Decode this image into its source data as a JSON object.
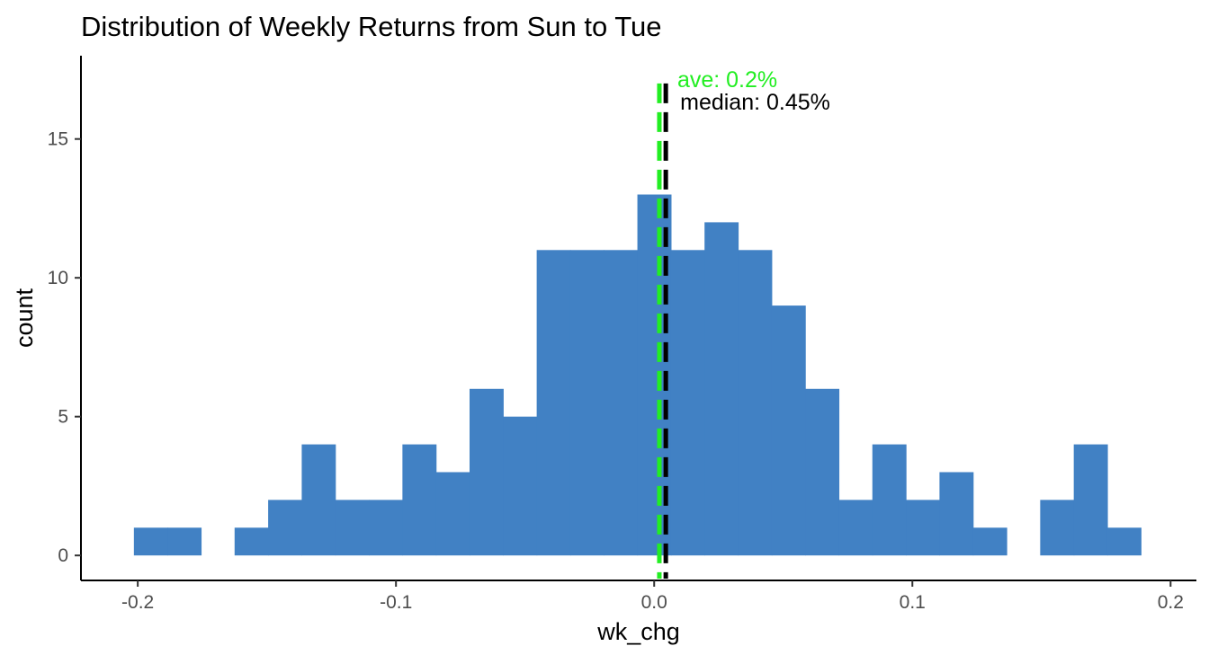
{
  "chart_data": {
    "type": "histogram",
    "title": "Distribution of Weekly Returns from Sun to Tue",
    "xlabel": "wk_chg",
    "ylabel": "count",
    "xlim": [
      -0.222,
      0.21
    ],
    "ylim": [
      -0.9,
      18
    ],
    "x_ticks": [
      -0.2,
      -0.1,
      0.0,
      0.1,
      0.2
    ],
    "x_tick_labels": [
      "-0.2",
      "-0.1",
      "0.0",
      "0.1",
      "0.2"
    ],
    "y_ticks": [
      0,
      5,
      10,
      15
    ],
    "y_tick_labels": [
      "0",
      "5",
      "10",
      "15"
    ],
    "grid": false,
    "bar_color": "#4181C4",
    "bin_width": 0.013,
    "bins": [
      {
        "left": -0.2015,
        "count": 1
      },
      {
        "left": -0.1885,
        "count": 1
      },
      {
        "left": -0.1755,
        "count": 0
      },
      {
        "left": -0.1625,
        "count": 1
      },
      {
        "left": -0.1495,
        "count": 2
      },
      {
        "left": -0.1365,
        "count": 4
      },
      {
        "left": -0.1235,
        "count": 2
      },
      {
        "left": -0.1105,
        "count": 2
      },
      {
        "left": -0.0975,
        "count": 4
      },
      {
        "left": -0.0845,
        "count": 3
      },
      {
        "left": -0.0715,
        "count": 6
      },
      {
        "left": -0.0585,
        "count": 5
      },
      {
        "left": -0.0455,
        "count": 11
      },
      {
        "left": -0.0325,
        "count": 11
      },
      {
        "left": -0.0195,
        "count": 11
      },
      {
        "left": -0.0065,
        "count": 13
      },
      {
        "left": 0.0065,
        "count": 11
      },
      {
        "left": 0.0195,
        "count": 12
      },
      {
        "left": 0.0325,
        "count": 11
      },
      {
        "left": 0.0455,
        "count": 9
      },
      {
        "left": 0.0585,
        "count": 6
      },
      {
        "left": 0.0715,
        "count": 2
      },
      {
        "left": 0.0845,
        "count": 4
      },
      {
        "left": 0.0975,
        "count": 2
      },
      {
        "left": 0.1105,
        "count": 3
      },
      {
        "left": 0.1235,
        "count": 1
      },
      {
        "left": 0.1365,
        "count": 0
      },
      {
        "left": 0.1495,
        "count": 2
      },
      {
        "left": 0.1625,
        "count": 4
      },
      {
        "left": 0.1755,
        "count": 1
      }
    ],
    "reference_lines": [
      {
        "name": "mean",
        "value": 0.002,
        "color": "#22EE22",
        "label": "ave: 0.2%"
      },
      {
        "name": "median",
        "value": 0.0045,
        "color": "#000000",
        "label": "median: 0.45%"
      }
    ]
  }
}
